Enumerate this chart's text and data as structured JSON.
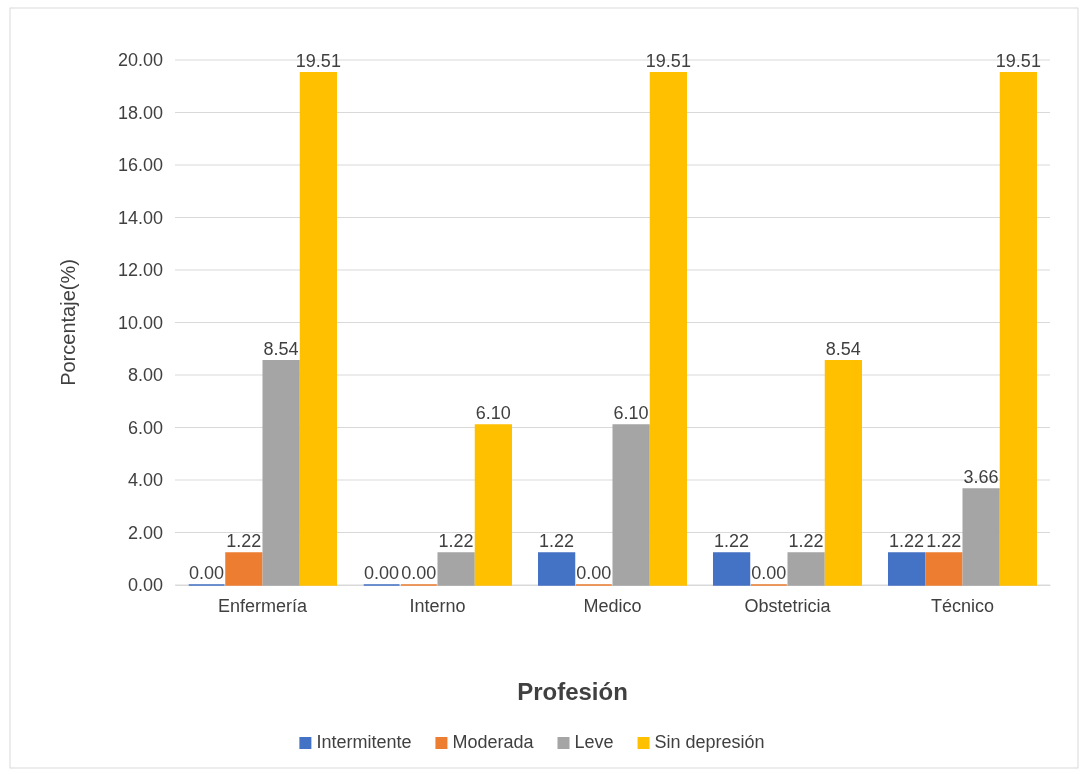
{
  "chart_data": {
    "type": "bar",
    "xlabel": "Profesión",
    "ylabel": "Porcentaje(%)",
    "categories": [
      "Enfermería",
      "Interno",
      "Medico",
      "Obstetricia",
      "Técnico"
    ],
    "series": [
      {
        "name": "Intermitente",
        "color": "#4472c4",
        "values": [
          0,
          0,
          1.22,
          1.22,
          1.22
        ],
        "value_labels": [
          "0.00",
          "0.00",
          "1.22",
          "1.22",
          "1.22"
        ]
      },
      {
        "name": "Moderada",
        "color": "#ed7d31",
        "values": [
          1.22,
          0,
          0,
          0,
          1.22
        ],
        "value_labels": [
          "1.22",
          "0.00",
          "0.00",
          "0.00",
          "1.22"
        ]
      },
      {
        "name": "Leve",
        "color": "#a5a5a5",
        "values": [
          8.54,
          1.22,
          6.1,
          1.22,
          3.66
        ],
        "value_labels": [
          "8.54",
          "1.22",
          "6.10",
          "1.22",
          "3.66"
        ]
      },
      {
        "name": "Sin depresión",
        "color": "#ffc000",
        "values": [
          19.51,
          6.1,
          19.51,
          8.54,
          19.51
        ],
        "value_labels": [
          "19.51",
          "6.10",
          "19.51",
          "8.54",
          "19.51"
        ]
      }
    ],
    "ylim": [
      0,
      20
    ],
    "yticks": [
      {
        "value": 0,
        "label": "0.00"
      },
      {
        "value": 2,
        "label": "2.00"
      },
      {
        "value": 4,
        "label": "4.00"
      },
      {
        "value": 6,
        "label": "6.00"
      },
      {
        "value": 8,
        "label": "8.00"
      },
      {
        "value": 10,
        "label": "10.00"
      },
      {
        "value": 12,
        "label": "12.00"
      },
      {
        "value": 14,
        "label": "14.00"
      },
      {
        "value": 16,
        "label": "16.00"
      },
      {
        "value": 18,
        "label": "18.00"
      },
      {
        "value": 20,
        "label": "20.00"
      }
    ],
    "grid": "y",
    "legend": "bottom"
  }
}
